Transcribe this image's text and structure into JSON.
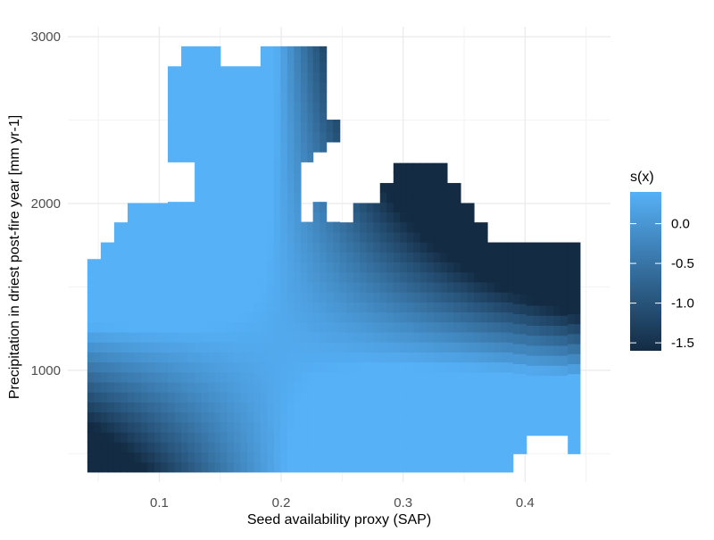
{
  "chart_data": {
    "type": "heatmap",
    "xlabel": "Seed availability proxy (SAP)",
    "ylabel": "Precipitation in driest post-fire year [mm yr-1]",
    "xlim": [
      0.025,
      0.47
    ],
    "ylim": [
      330,
      3060
    ],
    "x_ticks": [
      0.1,
      0.2,
      0.3,
      0.4
    ],
    "x_tick_labels": [
      "0.1",
      "0.2",
      "0.3",
      "0.4"
    ],
    "y_ticks": [
      1000,
      2000,
      3000
    ],
    "y_tick_labels": [
      "1000",
      "2000",
      "3000"
    ],
    "grid": true,
    "legend": {
      "title": "s(x)",
      "placement": "right",
      "range": [
        -1.6,
        0.4
      ],
      "ticks": [
        0.0,
        -0.5,
        -1.0,
        -1.5
      ],
      "tick_labels": [
        "0.0",
        "-0.5",
        "-1.0",
        "-1.5"
      ],
      "color_low": "#132B43",
      "color_high": "#56B1F7"
    },
    "surface": {
      "description_of_values": "smooth term s(x) over SAP and precipitation",
      "coef_a": 0.296,
      "coef_sap_sq": -14.4,
      "coef_sap": 2.89,
      "coef_precip": -4.5e-05,
      "coef_interaction": -0.00214,
      "sap_center": 0.2
    },
    "coverage": [
      {
        "x": [
          0.041,
          0.052
        ],
        "y": [
          390,
          1667
        ]
      },
      {
        "x": [
          0.052,
          0.063
        ],
        "y": [
          390,
          1767
        ]
      },
      {
        "x": [
          0.063,
          0.074
        ],
        "y": [
          390,
          1887
        ]
      },
      {
        "x": [
          0.074,
          0.107
        ],
        "y": [
          390,
          2003
        ]
      },
      {
        "x": [
          0.107,
          0.118
        ],
        "y": [
          390,
          2823
        ]
      },
      {
        "x": [
          0.118,
          0.129
        ],
        "y": [
          390,
          2943
        ]
      },
      {
        "x": [
          0.129,
          0.15
        ],
        "y": [
          390,
          2943
        ]
      },
      {
        "x": [
          0.15,
          0.183
        ],
        "y": [
          390,
          2823
        ]
      },
      {
        "x": [
          0.183,
          0.226
        ],
        "y": [
          390,
          2943
        ]
      },
      {
        "x": [
          0.226,
          0.237
        ],
        "y": [
          390,
          2943
        ]
      },
      {
        "x": [
          0.237,
          0.248
        ],
        "y": [
          390,
          2503
        ]
      },
      {
        "x": [
          0.248,
          0.259
        ],
        "y": [
          390,
          1887
        ]
      },
      {
        "x": [
          0.259,
          0.281
        ],
        "y": [
          390,
          2003
        ]
      },
      {
        "x": [
          0.281,
          0.292
        ],
        "y": [
          390,
          2123
        ]
      },
      {
        "x": [
          0.292,
          0.336
        ],
        "y": [
          390,
          2243
        ]
      },
      {
        "x": [
          0.336,
          0.347
        ],
        "y": [
          390,
          2123
        ]
      },
      {
        "x": [
          0.347,
          0.358
        ],
        "y": [
          390,
          2003
        ]
      },
      {
        "x": [
          0.358,
          0.369
        ],
        "y": [
          390,
          1887
        ]
      },
      {
        "x": [
          0.369,
          0.39
        ],
        "y": [
          390,
          1767
        ]
      },
      {
        "x": [
          0.39,
          0.401
        ],
        "y": [
          500,
          1767
        ]
      },
      {
        "x": [
          0.401,
          0.435
        ],
        "y": [
          610,
          1767
        ]
      },
      {
        "x": [
          0.435,
          0.445
        ],
        "y": [
          500,
          1767
        ]
      }
    ],
    "gaps": [
      {
        "x": [
          0.107,
          0.129
        ],
        "y": [
          2003,
          2243
        ]
      },
      {
        "x": [
          0.215,
          0.226
        ],
        "y": [
          2003,
          2243
        ]
      },
      {
        "x": [
          0.226,
          0.237
        ],
        "y": [
          2243,
          2323
        ]
      },
      {
        "x": [
          0.226,
          0.237
        ],
        "y": [
          2003,
          2243
        ]
      },
      {
        "x": [
          0.237,
          0.248
        ],
        "y": [
          1887,
          2383
        ]
      },
      {
        "x": [
          0.215,
          0.226
        ],
        "y": [
          1887,
          2003
        ]
      }
    ]
  }
}
